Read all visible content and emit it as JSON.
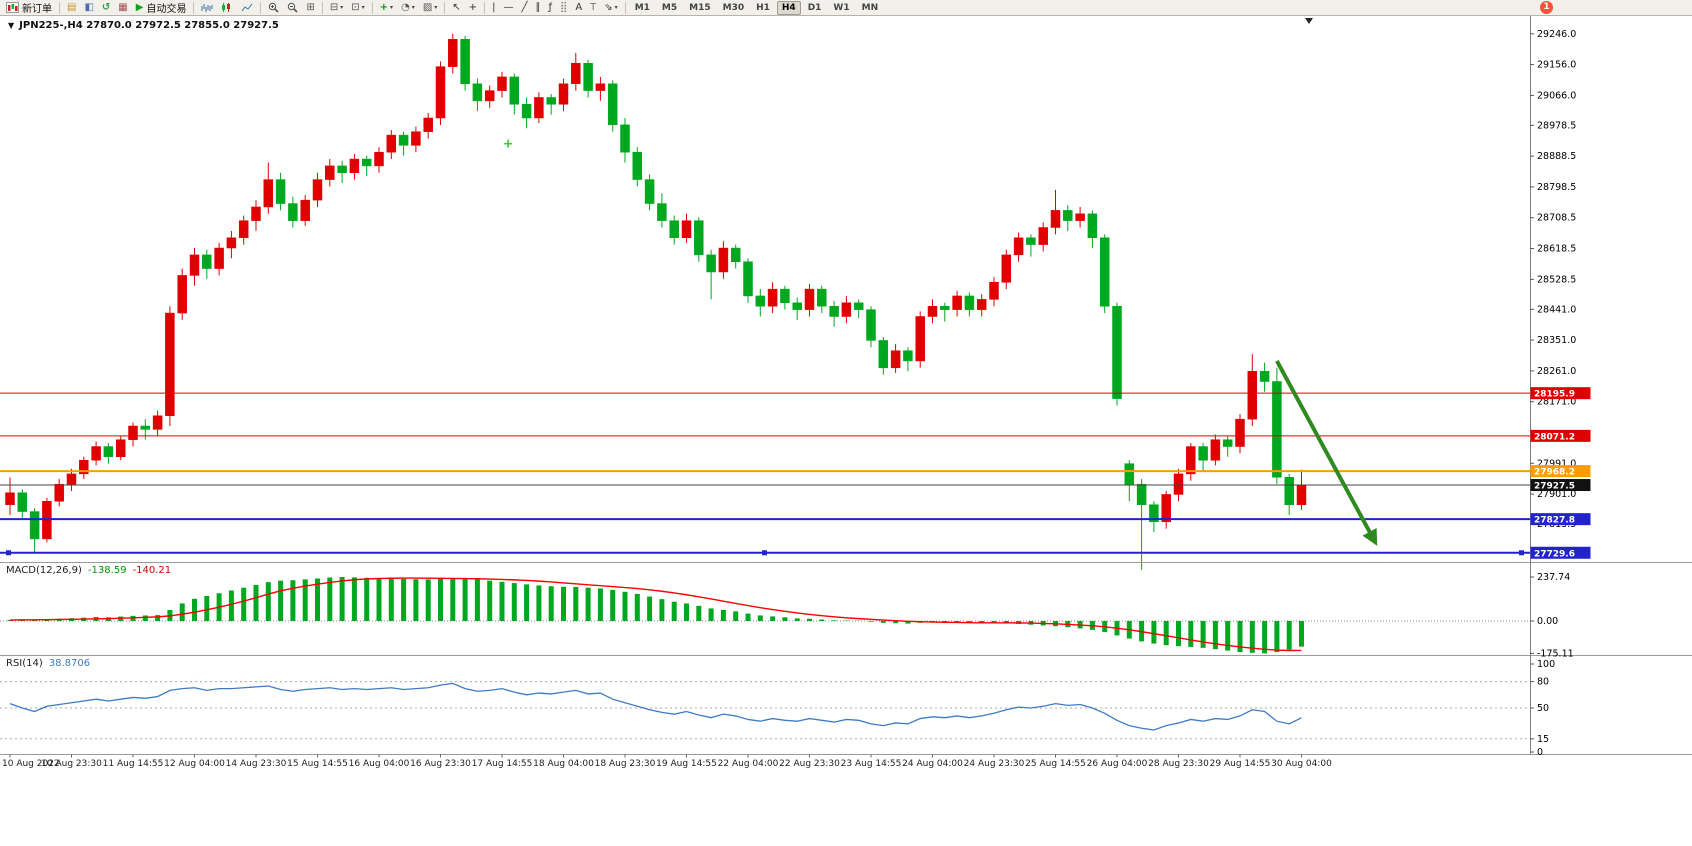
{
  "app": {
    "badge_count": "1"
  },
  "icons": {
    "one_click": "▼"
  },
  "symbol_bar": {
    "text": "JPN225-,H4  27870.0 27972.5 27855.0 27927.5"
  },
  "indicators": {
    "macd_title": "MACD(12,26,9)",
    "macd_main": "-138.59",
    "macd_signal": "-140.21",
    "rsi_title": "RSI(14)",
    "rsi_value": "38.8706"
  },
  "toolbar": {
    "groups": [
      {
        "items": [
          {
            "name": "new-order-button",
            "icon": "new-order",
            "label": "新订单"
          }
        ]
      },
      {
        "sep": true
      },
      {
        "items": [
          {
            "name": "market-watch-button",
            "icon": "market-watch"
          },
          {
            "name": "data-window-button",
            "icon": "data-window"
          },
          {
            "name": "navigator-button",
            "icon": "navigator"
          },
          {
            "name": "terminal-button",
            "icon": "terminal"
          },
          {
            "name": "autotrading-button",
            "icon": "autotrading",
            "label": "自动交易"
          }
        ]
      },
      {
        "sep": true
      },
      {
        "items": [
          {
            "name": "bar-chart-button",
            "icon": "chart-bars"
          },
          {
            "name": "candlestick-chart-button",
            "icon": "chart-candles"
          },
          {
            "name": "line-chart-button",
            "icon": "chart-line"
          }
        ]
      },
      {
        "sep": true
      },
      {
        "items": [
          {
            "name": "zoom-in-button",
            "icon": "zoom-in"
          },
          {
            "name": "zoom-out-button",
            "icon": "zoom-out"
          },
          {
            "name": "tile-windows-button",
            "icon": "tile-windows"
          }
        ]
      },
      {
        "sep": true
      },
      {
        "items": [
          {
            "name": "new-chart-button",
            "icon": "arrange",
            "caret": true
          },
          {
            "name": "profiles-button",
            "icon": "cascade",
            "caret": true
          }
        ]
      },
      {
        "sep": true
      },
      {
        "items": [
          {
            "name": "indicators-button",
            "icon": "indicators",
            "caret": true
          },
          {
            "name": "periods-button",
            "icon": "period",
            "caret": true
          },
          {
            "name": "templates-button",
            "icon": "templates",
            "caret": true
          }
        ]
      },
      {
        "sep": true
      },
      {
        "items": [
          {
            "name": "cursor-button",
            "icon": "cursor"
          },
          {
            "name": "crosshair-button",
            "icon": "crosshair"
          }
        ]
      },
      {
        "sep": true
      },
      {
        "items": [
          {
            "name": "vertical-line-button",
            "icon": "vline"
          },
          {
            "name": "horizontal-line-button",
            "icon": "hline"
          },
          {
            "name": "trendline-button",
            "icon": "trendline"
          },
          {
            "name": "channel-button",
            "icon": "channel"
          },
          {
            "name": "fibonacci-button",
            "icon": "fibonacci"
          },
          {
            "name": "shapes-button",
            "icon": "shapes"
          },
          {
            "name": "text-button",
            "icon": "text"
          },
          {
            "name": "label-button",
            "icon": "label"
          },
          {
            "name": "arrows-button",
            "icon": "arrows",
            "caret": true
          }
        ]
      },
      {
        "sep": true
      },
      {
        "timeframes": [
          "M1",
          "M5",
          "M15",
          "M30",
          "H1",
          "H4",
          "D1",
          "W1",
          "MN"
        ],
        "active": "H4"
      }
    ]
  },
  "chart_data": {
    "type": "candlestick",
    "symbol": "JPN225-",
    "timeframe": "H4",
    "ohlc_current": {
      "open": 27870.0,
      "high": 27972.5,
      "low": 27855.0,
      "close": 27927.5
    },
    "colors": {
      "bull": "#e00000",
      "bear": "#00a81f",
      "macd_hist": "#00a81f",
      "macd_signal": "#ff0000",
      "rsi_line": "#3e7bc6",
      "arrow": "#2f8a1f"
    },
    "candles": [
      [
        27870,
        27950,
        27840,
        27905
      ],
      [
        27905,
        27915,
        27830,
        27850
      ],
      [
        27850,
        27860,
        27730,
        27770
      ],
      [
        27770,
        27890,
        27760,
        27880
      ],
      [
        27880,
        27945,
        27865,
        27930
      ],
      [
        27930,
        27975,
        27910,
        27960
      ],
      [
        27960,
        28010,
        27945,
        28000
      ],
      [
        28000,
        28055,
        27985,
        28040
      ],
      [
        28040,
        28050,
        27990,
        28010
      ],
      [
        28010,
        28070,
        28000,
        28060
      ],
      [
        28060,
        28110,
        28040,
        28100
      ],
      [
        28100,
        28120,
        28060,
        28090
      ],
      [
        28090,
        28145,
        28070,
        28130
      ],
      [
        28130,
        28450,
        28100,
        28430
      ],
      [
        28430,
        28560,
        28410,
        28540
      ],
      [
        28540,
        28620,
        28510,
        28600
      ],
      [
        28600,
        28615,
        28530,
        28560
      ],
      [
        28560,
        28635,
        28540,
        28620
      ],
      [
        28620,
        28670,
        28590,
        28650
      ],
      [
        28650,
        28715,
        28630,
        28700
      ],
      [
        28700,
        28760,
        28670,
        28740
      ],
      [
        28740,
        28870,
        28720,
        28820
      ],
      [
        28820,
        28840,
        28730,
        28750
      ],
      [
        28750,
        28770,
        28680,
        28700
      ],
      [
        28700,
        28775,
        28685,
        28760
      ],
      [
        28760,
        28840,
        28740,
        28820
      ],
      [
        28820,
        28880,
        28800,
        28860
      ],
      [
        28860,
        28875,
        28810,
        28840
      ],
      [
        28840,
        28895,
        28820,
        28880
      ],
      [
        28880,
        28890,
        28830,
        28860
      ],
      [
        28860,
        28915,
        28840,
        28900
      ],
      [
        28900,
        28965,
        28880,
        28950
      ],
      [
        28950,
        28960,
        28890,
        28920
      ],
      [
        28920,
        28975,
        28900,
        28960
      ],
      [
        28960,
        29015,
        28940,
        29000
      ],
      [
        29000,
        29165,
        28980,
        29150
      ],
      [
        29150,
        29246,
        29130,
        29230
      ],
      [
        29230,
        29240,
        29080,
        29100
      ],
      [
        29100,
        29115,
        29020,
        29050
      ],
      [
        29050,
        29095,
        29030,
        29080
      ],
      [
        29080,
        29135,
        29060,
        29120
      ],
      [
        29120,
        29130,
        29010,
        29040
      ],
      [
        29040,
        29060,
        28970,
        29000
      ],
      [
        29000,
        29075,
        28985,
        29060
      ],
      [
        29060,
        29070,
        29010,
        29040
      ],
      [
        29040,
        29115,
        29020,
        29100
      ],
      [
        29100,
        29190,
        29080,
        29160
      ],
      [
        29160,
        29170,
        29060,
        29080
      ],
      [
        29080,
        29120,
        29050,
        29100
      ],
      [
        29100,
        29110,
        28960,
        28980
      ],
      [
        28980,
        29000,
        28870,
        28900
      ],
      [
        28900,
        28915,
        28800,
        28820
      ],
      [
        28820,
        28835,
        28730,
        28750
      ],
      [
        28750,
        28780,
        28680,
        28700
      ],
      [
        28700,
        28715,
        28630,
        28650
      ],
      [
        28650,
        28720,
        28635,
        28700
      ],
      [
        28700,
        28710,
        28580,
        28600
      ],
      [
        28600,
        28615,
        28470,
        28550
      ],
      [
        28550,
        28640,
        28530,
        28620
      ],
      [
        28620,
        28630,
        28560,
        28580
      ],
      [
        28580,
        28590,
        28460,
        28480
      ],
      [
        28480,
        28500,
        28420,
        28450
      ],
      [
        28450,
        28520,
        28430,
        28500
      ],
      [
        28500,
        28510,
        28440,
        28460
      ],
      [
        28460,
        28475,
        28410,
        28440
      ],
      [
        28440,
        28515,
        28420,
        28500
      ],
      [
        28500,
        28510,
        28430,
        28450
      ],
      [
        28450,
        28465,
        28390,
        28420
      ],
      [
        28420,
        28480,
        28400,
        28460
      ],
      [
        28460,
        28470,
        28415,
        28440
      ],
      [
        28440,
        28450,
        28330,
        28350
      ],
      [
        28350,
        28360,
        28250,
        28270
      ],
      [
        28270,
        28340,
        28255,
        28320
      ],
      [
        28320,
        28330,
        28260,
        28290
      ],
      [
        28290,
        28435,
        28270,
        28420
      ],
      [
        28420,
        28470,
        28400,
        28450
      ],
      [
        28450,
        28460,
        28405,
        28440
      ],
      [
        28440,
        28495,
        28420,
        28480
      ],
      [
        28480,
        28490,
        28420,
        28440
      ],
      [
        28440,
        28485,
        28420,
        28470
      ],
      [
        28470,
        28535,
        28450,
        28520
      ],
      [
        28520,
        28615,
        28500,
        28600
      ],
      [
        28600,
        28665,
        28580,
        28650
      ],
      [
        28650,
        28660,
        28595,
        28630
      ],
      [
        28630,
        28695,
        28610,
        28680
      ],
      [
        28680,
        28790,
        28660,
        28730
      ],
      [
        28730,
        28745,
        28670,
        28700
      ],
      [
        28700,
        28740,
        28680,
        28720
      ],
      [
        28720,
        28730,
        28620,
        28650
      ],
      [
        28650,
        28660,
        28430,
        28450
      ],
      [
        28450,
        28460,
        28160,
        28180
      ],
      [
        27990,
        28000,
        27880,
        27930
      ],
      [
        27930,
        27945,
        27680,
        27870
      ],
      [
        27870,
        27880,
        27790,
        27820
      ],
      [
        27820,
        27910,
        27800,
        27900
      ],
      [
        27900,
        27975,
        27880,
        27960
      ],
      [
        27960,
        28050,
        27940,
        28040
      ],
      [
        28040,
        28050,
        27970,
        28000
      ],
      [
        28000,
        28075,
        27985,
        28060
      ],
      [
        28060,
        28070,
        28010,
        28040
      ],
      [
        28040,
        28135,
        28020,
        28120
      ],
      [
        28120,
        28310,
        28100,
        28260
      ],
      [
        28260,
        28285,
        28200,
        28230
      ],
      [
        28230,
        28270,
        27930,
        27950
      ],
      [
        27950,
        27960,
        27840,
        27870
      ],
      [
        27870,
        27972.5,
        27855,
        27927.5
      ]
    ],
    "price_axis_labels": [
      29246.0,
      29156.0,
      29066.0,
      28978.5,
      28888.5,
      28798.5,
      28708.5,
      28618.5,
      28528.5,
      28441.0,
      28351.0,
      28261.0,
      28171.0,
      27991.0,
      27901.0,
      27813.5
    ],
    "hlines": [
      {
        "value": 28195.9,
        "color": "#e00000",
        "width": 1,
        "badge": "#e00000"
      },
      {
        "value": 28071.2,
        "color": "#e00000",
        "width": 1,
        "badge": "#e00000"
      },
      {
        "value": 27968.2,
        "color": "#ff9c00",
        "width": 2,
        "badge": "#ff9c00"
      },
      {
        "value": 27927.5,
        "color": "#444444",
        "width": 1,
        "badge": "#111111"
      },
      {
        "value": 27827.8,
        "color": "#2323cc",
        "width": 2,
        "badge": "#2323cc"
      },
      {
        "value": 27729.6,
        "color": "#2323cc",
        "width": 2,
        "badge": "#2323cc",
        "handles": true
      }
    ],
    "current_price": {
      "value": 27927.5
    },
    "macd": {
      "values": [
        5,
        8,
        6,
        10,
        12,
        15,
        18,
        22,
        20,
        24,
        28,
        30,
        32,
        60,
        95,
        120,
        135,
        150,
        165,
        180,
        195,
        210,
        218,
        220,
        225,
        230,
        235,
        237.7,
        236,
        234,
        232,
        230,
        228,
        226,
        225,
        228,
        232,
        230,
        225,
        218,
        212,
        205,
        198,
        192,
        188,
        185,
        184,
        180,
        176,
        168,
        158,
        146,
        132,
        118,
        104,
        95,
        82,
        68,
        60,
        52,
        40,
        30,
        25,
        20,
        14,
        12,
        8,
        4,
        2,
        1,
        -4,
        -10,
        -12,
        -14,
        -10,
        -8,
        -8,
        -6,
        -8,
        -10,
        -12,
        -14,
        -16,
        -20,
        -24,
        -28,
        -34,
        -40,
        -48,
        -60,
        -78,
        -95,
        -110,
        -122,
        -130,
        -136,
        -140,
        -145,
        -152,
        -160,
        -168,
        -172,
        -175.1,
        -168,
        -155,
        -138.6
      ],
      "signal_period": 9,
      "axis": [
        237.74,
        0,
        -175.11
      ]
    },
    "rsi": {
      "values": [
        55,
        50,
        46,
        52,
        54,
        56,
        58,
        60,
        58,
        60,
        62,
        61,
        63,
        70,
        72,
        73,
        70,
        72,
        72,
        73,
        74,
        75,
        71,
        69,
        71,
        72,
        73,
        71,
        72,
        71,
        72,
        73,
        71,
        72,
        73,
        76,
        78,
        72,
        69,
        70,
        72,
        68,
        65,
        67,
        66,
        68,
        70,
        66,
        67,
        60,
        56,
        52,
        48,
        45,
        43,
        46,
        42,
        39,
        43,
        41,
        37,
        35,
        38,
        36,
        35,
        38,
        36,
        34,
        37,
        36,
        32,
        30,
        33,
        32,
        38,
        40,
        39,
        41,
        39,
        41,
        44,
        48,
        51,
        50,
        52,
        55,
        53,
        54,
        50,
        44,
        36,
        30,
        27,
        25,
        30,
        33,
        37,
        35,
        38,
        37,
        41,
        48,
        46,
        35,
        32,
        38.87
      ],
      "levels": [
        80,
        50,
        15
      ],
      "axis": [
        100,
        80,
        50,
        15,
        0
      ]
    },
    "time_labels": [
      "10 Aug 2022",
      "10 Aug 23:30",
      "11 Aug 14:55",
      "12 Aug 04:00",
      "14 Aug 23:30",
      "15 Aug 14:55",
      "16 Aug 04:00",
      "16 Aug 23:30",
      "17 Aug 14:55",
      "18 Aug 04:00",
      "18 Aug 23:30",
      "19 Aug 14:55",
      "22 Aug 04:00",
      "22 Aug 23:30",
      "23 Aug 14:55",
      "24 Aug 04:00",
      "24 Aug 23:30",
      "25 Aug 14:55",
      "26 Aug 04:00",
      "28 Aug 23:30",
      "29 Aug 14:55",
      "30 Aug 04:00"
    ],
    "time_label_step": 5,
    "arrow": {
      "x1_index": 103,
      "y1_price": 28290,
      "x2_index": 111,
      "y2_price": 27760
    },
    "marker_cross": {
      "x_index": 40.5,
      "price": 28925
    }
  }
}
